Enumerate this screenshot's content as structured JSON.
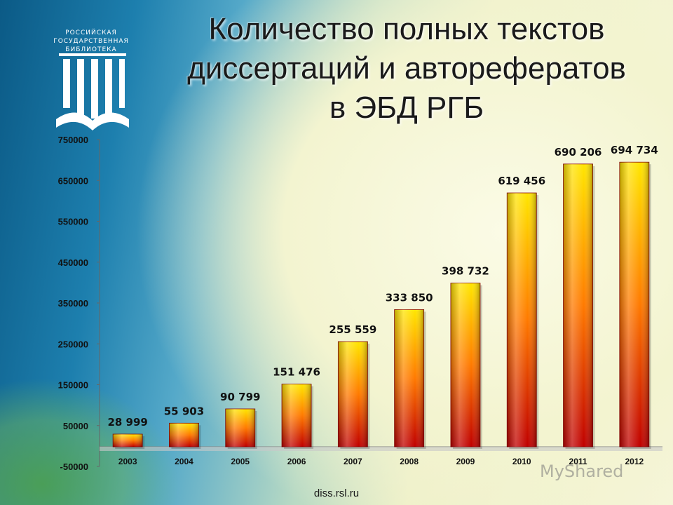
{
  "title_lines": [
    "Количество полных текстов",
    "диссертаций и авторефератов",
    "в ЭБД РГБ"
  ],
  "logo": {
    "lines": [
      "РОССИЙСКАЯ",
      "ГОСУДАРСТВЕННАЯ",
      "БИБЛИОТЕКА"
    ],
    "icon": "library-columns-book-icon"
  },
  "footer": "diss.rsl.ru",
  "watermark": "MyShared",
  "colors": {
    "bar_top": "#ffe600",
    "bar_mid": "#ff7a00",
    "bar_bottom": "#c00000",
    "axis": "#555555"
  },
  "chart_data": {
    "type": "bar",
    "categories": [
      "2003",
      "2004",
      "2005",
      "2006",
      "2007",
      "2008",
      "2009",
      "2010",
      "2011",
      "2012"
    ],
    "values": [
      28999,
      55903,
      90799,
      151476,
      255559,
      333850,
      398732,
      619456,
      690206,
      694734
    ],
    "data_labels": [
      "28 999",
      "55 903",
      "90 799",
      "151 476",
      "255 559",
      "333 850",
      "398 732",
      "619 456",
      "690 206",
      "694 734"
    ],
    "y_ticks": [
      750000,
      650000,
      550000,
      450000,
      350000,
      250000,
      150000,
      50000,
      -50000
    ],
    "ylim": [
      -50000,
      750000
    ],
    "title": "",
    "xlabel": "",
    "ylabel": "",
    "grid": false,
    "legend": "none"
  }
}
